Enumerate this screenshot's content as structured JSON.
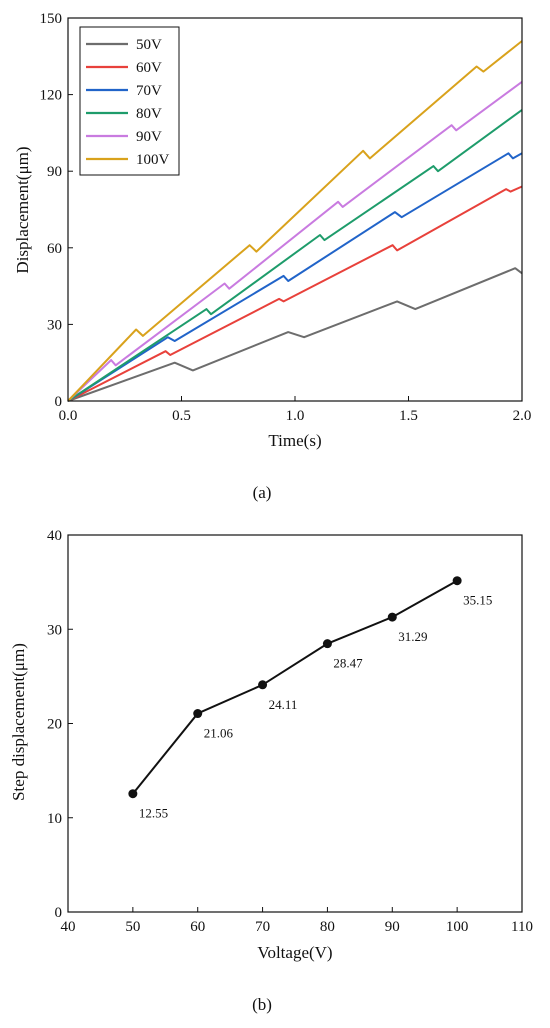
{
  "chart_data": [
    {
      "type": "line",
      "panel_label": "(a)",
      "xlabel": "Time(s)",
      "ylabel": "Displacement(μm)",
      "xlim": [
        0,
        2.0
      ],
      "ylim": [
        0,
        150
      ],
      "xticks": [
        "0.0",
        "0.5",
        "1.0",
        "1.5",
        "2.0"
      ],
      "yticks": [
        "0",
        "30",
        "60",
        "90",
        "120",
        "150"
      ],
      "legend_position": "top-left",
      "grid": false,
      "series": [
        {
          "name": "50V",
          "color": "#6d6d6d",
          "points": [
            [
              0,
              0
            ],
            [
              0.47,
              15
            ],
            [
              0.55,
              12
            ],
            [
              0.97,
              27
            ],
            [
              1.04,
              25
            ],
            [
              1.45,
              39
            ],
            [
              1.53,
              36
            ],
            [
              1.97,
              52
            ],
            [
              2.0,
              50
            ]
          ]
        },
        {
          "name": "60V",
          "color": "#e8413b",
          "points": [
            [
              0,
              0
            ],
            [
              0.43,
              19.5
            ],
            [
              0.45,
              18
            ],
            [
              0.93,
              40
            ],
            [
              0.95,
              39
            ],
            [
              1.43,
              61
            ],
            [
              1.45,
              59
            ],
            [
              1.93,
              83
            ],
            [
              1.95,
              82
            ],
            [
              2.0,
              84
            ]
          ]
        },
        {
          "name": "70V",
          "color": "#2164c9",
          "points": [
            [
              0,
              0
            ],
            [
              0.44,
              25
            ],
            [
              0.47,
              23.5
            ],
            [
              0.95,
              49
            ],
            [
              0.97,
              47
            ],
            [
              1.44,
              74
            ],
            [
              1.47,
              72
            ],
            [
              1.94,
              97
            ],
            [
              1.96,
              95
            ],
            [
              2.0,
              97
            ]
          ]
        },
        {
          "name": "80V",
          "color": "#1e9c6b",
          "points": [
            [
              0,
              0
            ],
            [
              0.61,
              36
            ],
            [
              0.63,
              34
            ],
            [
              1.11,
              65
            ],
            [
              1.13,
              63
            ],
            [
              1.61,
              92
            ],
            [
              1.63,
              90
            ],
            [
              2.0,
              114
            ]
          ]
        },
        {
          "name": "90V",
          "color": "#c97be0",
          "points": [
            [
              0,
              0
            ],
            [
              0.19,
              16
            ],
            [
              0.21,
              14
            ],
            [
              0.69,
              46
            ],
            [
              0.71,
              44
            ],
            [
              1.19,
              78
            ],
            [
              1.21,
              76
            ],
            [
              1.69,
              108
            ],
            [
              1.71,
              106
            ],
            [
              2.0,
              125
            ]
          ]
        },
        {
          "name": "100V",
          "color": "#d9a21c",
          "points": [
            [
              0,
              0
            ],
            [
              0.3,
              28
            ],
            [
              0.33,
              25.5
            ],
            [
              0.8,
              61
            ],
            [
              0.83,
              58.5
            ],
            [
              1.3,
              98
            ],
            [
              1.33,
              95
            ],
            [
              1.8,
              131
            ],
            [
              1.83,
              129
            ],
            [
              2.0,
              141
            ]
          ]
        }
      ]
    },
    {
      "type": "line",
      "panel_label": "(b)",
      "xlabel": "Voltage(V)",
      "ylabel": "Step displacement(μm)",
      "xlim": [
        40,
        110
      ],
      "ylim": [
        0,
        40
      ],
      "xticks": [
        "40",
        "50",
        "60",
        "70",
        "80",
        "90",
        "100",
        "110"
      ],
      "yticks": [
        "0",
        "10",
        "20",
        "30",
        "40"
      ],
      "grid": false,
      "markers": true,
      "x": [
        50,
        60,
        70,
        80,
        90,
        100
      ],
      "values": [
        12.55,
        21.06,
        24.11,
        28.47,
        31.29,
        35.15
      ],
      "labels": [
        "12.55",
        "21.06",
        "24.11",
        "28.47",
        "31.29",
        "35.15"
      ]
    }
  ]
}
